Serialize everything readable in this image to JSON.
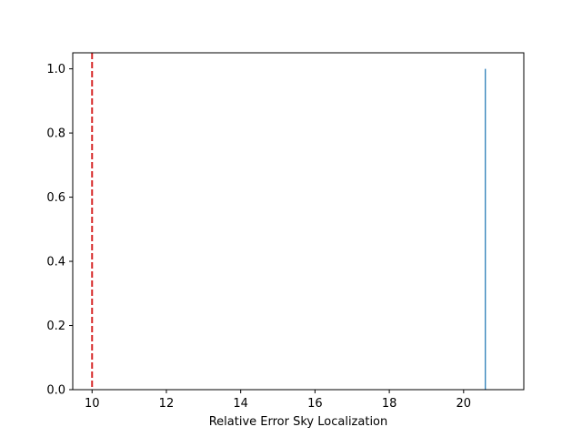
{
  "chart_data": {
    "type": "bar",
    "xlabel": "Relative Error Sky Localization",
    "ylabel": "",
    "title": "",
    "xlim": [
      9.48,
      21.62
    ],
    "ylim": [
      0.0,
      1.05
    ],
    "xticks": [
      10,
      12,
      14,
      16,
      18,
      20
    ],
    "yticks": [
      0.0,
      0.2,
      0.4,
      0.6,
      0.8,
      1.0
    ],
    "bars": [
      {
        "x_start": 20.57,
        "x_end": 20.6,
        "value": 1.0,
        "color": "#1f77b4"
      }
    ],
    "reference_line": {
      "x": 10.0,
      "color": "#d62728",
      "style": "dashed"
    },
    "grid": false,
    "legend": "none"
  }
}
